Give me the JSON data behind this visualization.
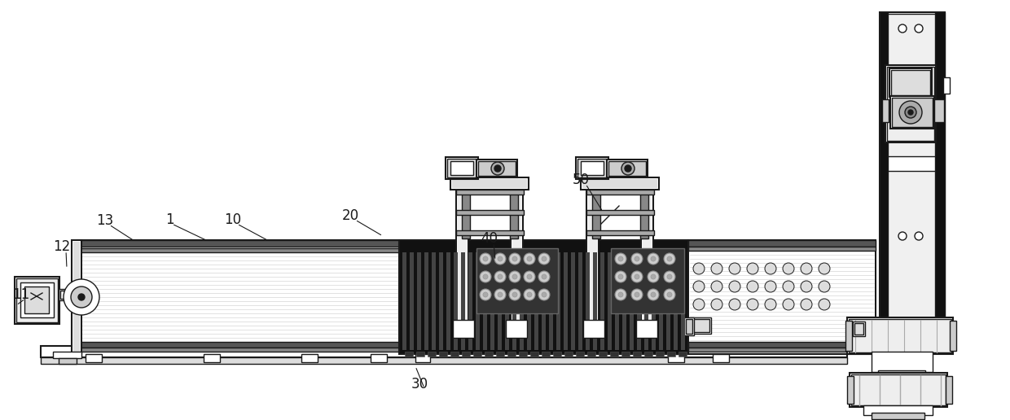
{
  "bg_color": "#ffffff",
  "line_color": "#1a1a1a",
  "dark_fill": "#111111",
  "figsize": [
    12.4,
    5.16
  ],
  "dpi": 100,
  "label_fontsize": 12
}
